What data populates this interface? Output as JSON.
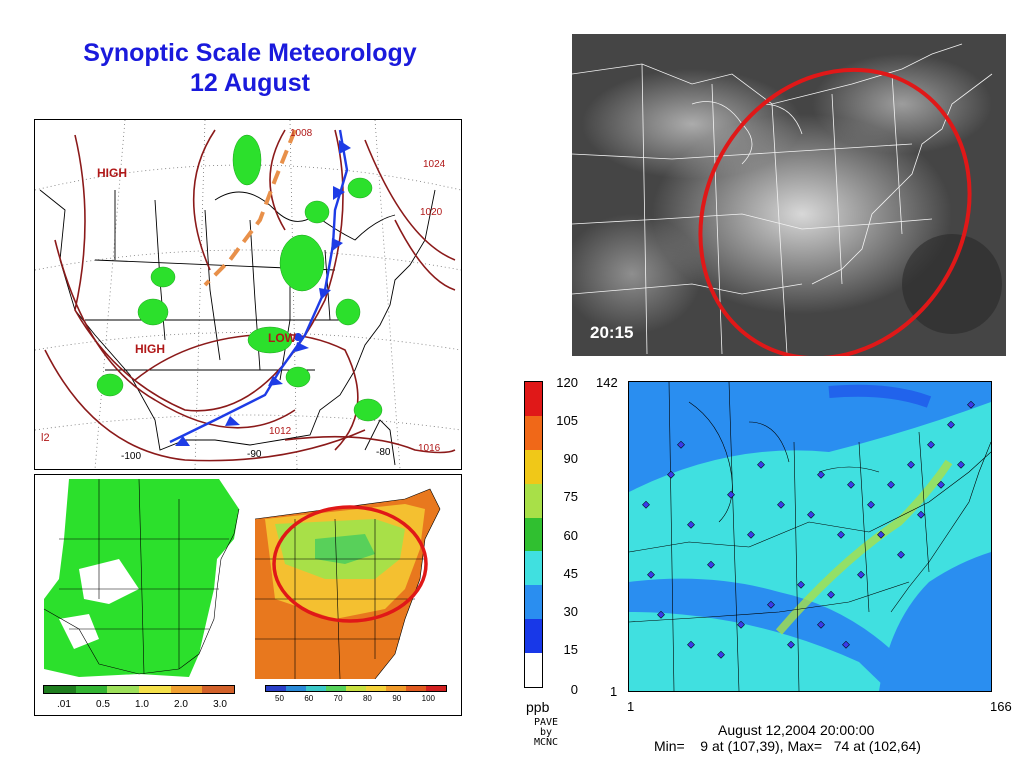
{
  "title": {
    "line1": "Synoptic Scale Meteorology",
    "line2": "12 August"
  },
  "weather_map": {
    "pressure_labels": [
      "HIGH",
      "HIGH",
      "LOW"
    ],
    "isobars": [
      "1008",
      "1024",
      "1020",
      "1012",
      "1016"
    ],
    "longitudes": [
      "-100",
      "-90",
      "-80"
    ],
    "corner_label": "l2"
  },
  "satellite": {
    "time": "20:15"
  },
  "precip_legend": {
    "ticks": [
      ".01",
      "0.5",
      "1.0",
      "2.0",
      "3.0"
    ],
    "colors": [
      "#1e7d1e",
      "#33b433",
      "#9de05a",
      "#f4e04a",
      "#f0a030",
      "#d2612a"
    ]
  },
  "rh_legend": {
    "ticks": [
      "50",
      "60",
      "70",
      "80",
      "90",
      "100"
    ],
    "colors": [
      "#2a3fc8",
      "#2a8ad8",
      "#3bc8c8",
      "#56d25a",
      "#c8e040",
      "#f4d23a",
      "#f09a2a",
      "#e05a20",
      "#d22020"
    ]
  },
  "ozone_plot": {
    "unit": "ppb",
    "scale_ticks": [
      "120",
      "105",
      "90",
      "75",
      "60",
      "45",
      "30",
      "15",
      "0"
    ],
    "scale_colors": [
      "#e01818",
      "#f06818",
      "#f0c818",
      "#a8e048",
      "#30c030",
      "#40e0e0",
      "#2a8ef0",
      "#1838e8",
      "#ffffff"
    ],
    "x_axis": [
      "1",
      "166"
    ],
    "y_axis": [
      "1",
      "142"
    ],
    "date": "August 12,2004 20:00:00",
    "stats": "Min=    9 at (107,39), Max=   74 at (102,64)",
    "credit": [
      "PAVE",
      "by",
      "MCNC"
    ]
  }
}
